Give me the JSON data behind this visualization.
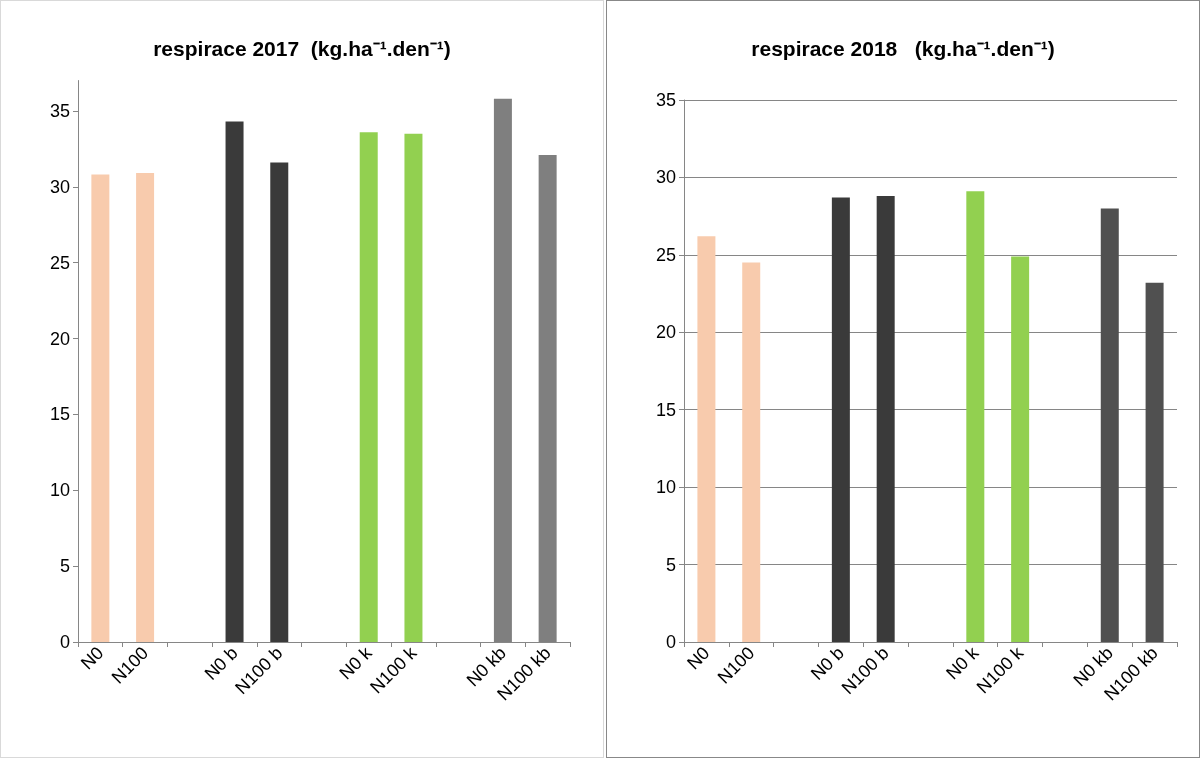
{
  "chart_data": [
    {
      "type": "bar",
      "title": "respirace 2017  (kg.ha⁻¹.den⁻¹)",
      "categories": [
        "N0",
        "N100",
        null,
        "N0 b",
        "N100 b",
        null,
        "N0 k",
        "N100 k",
        null,
        "N0 kb",
        "N100 kb"
      ],
      "values": [
        30.8,
        30.9,
        null,
        34.3,
        31.6,
        null,
        33.6,
        33.5,
        null,
        35.8,
        32.1
      ],
      "colors": [
        "#f8cbad",
        "#f8cbad",
        "#ffffff",
        "#3a3a3a",
        "#3a3a3a",
        "#ffffff",
        "#92d050",
        "#92d050",
        "#ffffff",
        "#7f7f7f",
        "#7f7f7f"
      ],
      "ylim": [
        0,
        37
      ],
      "yticks": [
        0,
        5,
        10,
        15,
        20,
        25,
        30,
        35
      ],
      "grid": false
    },
    {
      "type": "bar",
      "title": "respirace 2018   (kg.ha⁻¹.den⁻¹)",
      "categories": [
        "N0",
        "N100",
        null,
        "N0 b",
        "N100 b",
        null,
        "N0 k",
        "N100 k",
        null,
        "N0 kb",
        "N100 kb"
      ],
      "values": [
        26.2,
        24.5,
        null,
        28.7,
        28.8,
        null,
        29.1,
        24.9,
        null,
        28.0,
        23.2
      ],
      "colors": [
        "#f8cbad",
        "#f8cbad",
        "#ffffff",
        "#3a3a3a",
        "#3a3a3a",
        "#ffffff",
        "#92d050",
        "#92d050",
        "#ffffff",
        "#505050",
        "#505050"
      ],
      "ylim": [
        0,
        35
      ],
      "yticks": [
        0,
        5,
        10,
        15,
        20,
        25,
        30,
        35
      ],
      "grid": "y"
    }
  ]
}
